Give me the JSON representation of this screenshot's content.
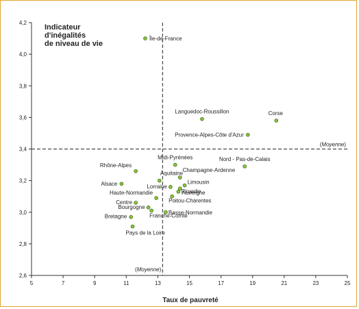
{
  "chart_data": {
    "type": "scatter",
    "ylabel_lines": [
      "Indicateur",
      "d'inégalités",
      "de niveau de vie"
    ],
    "xlabel": "Taux de pauvreté",
    "xlim": [
      5,
      25
    ],
    "ylim": [
      2.6,
      4.2
    ],
    "xticks": [
      "5",
      "7",
      "9",
      "11",
      "13",
      "15",
      "17",
      "19",
      "21",
      "23",
      "25"
    ],
    "yticks": [
      "2,6",
      "2,8",
      "3,0",
      "3,2",
      "3,4",
      "3,6",
      "3,8",
      "4,0",
      "4,2"
    ],
    "xticks_values": [
      5,
      7,
      9,
      11,
      13,
      15,
      17,
      19,
      21,
      23,
      25
    ],
    "yticks_values": [
      2.6,
      2.8,
      3.0,
      3.2,
      3.4,
      3.6,
      3.8,
      4.0,
      4.2
    ],
    "mean_x": 13.3,
    "mean_y": 3.4,
    "mean_label_x": "(Moyenne)",
    "mean_label_y": "(Moyenne)",
    "point_color": "#8cc63f",
    "point_stroke": "#3d6b12",
    "points": [
      {
        "label": "Île-de-France",
        "x": 12.2,
        "y": 4.1
      },
      {
        "label": "Languedoc-Roussillon",
        "x": 15.8,
        "y": 3.59
      },
      {
        "label": "Corse",
        "x": 20.5,
        "y": 3.58
      },
      {
        "label": "Provence-Alpes-Côte d'Azur",
        "x": 18.7,
        "y": 3.49
      },
      {
        "label": "Nord - Pas-de-Calais",
        "x": 18.5,
        "y": 3.29
      },
      {
        "label": "Midi-Pyrénées",
        "x": 14.1,
        "y": 3.3
      },
      {
        "label": "Rhône-Alpes",
        "x": 11.6,
        "y": 3.26
      },
      {
        "label": "Champagne-Ardenne",
        "x": 14.4,
        "y": 3.22
      },
      {
        "label": "Aquitaine",
        "x": 13.1,
        "y": 3.2
      },
      {
        "label": "Alsace",
        "x": 10.7,
        "y": 3.18
      },
      {
        "label": "Limousin",
        "x": 14.7,
        "y": 3.17
      },
      {
        "label": "Lorraine",
        "x": 13.8,
        "y": 3.16
      },
      {
        "label": "Picardie",
        "x": 14.4,
        "y": 3.15
      },
      {
        "label": "Auvergne",
        "x": 14.3,
        "y": 3.13
      },
      {
        "label": "Haute-Normandie",
        "x": 12.9,
        "y": 3.09
      },
      {
        "label": "Poitou-Charentes",
        "x": 13.9,
        "y": 3.1
      },
      {
        "label": "Centre",
        "x": 11.6,
        "y": 3.06
      },
      {
        "label": "Bourgogne",
        "x": 12.4,
        "y": 3.03
      },
      {
        "label": "Basse-Normandie",
        "x": 13.5,
        "y": 3.0
      },
      {
        "label": "Bretagne",
        "x": 11.3,
        "y": 2.97
      },
      {
        "label": "Franche-Comté",
        "x": 12.6,
        "y": 3.01
      },
      {
        "label": "Pays de la Loire",
        "x": 11.4,
        "y": 2.91
      }
    ]
  }
}
